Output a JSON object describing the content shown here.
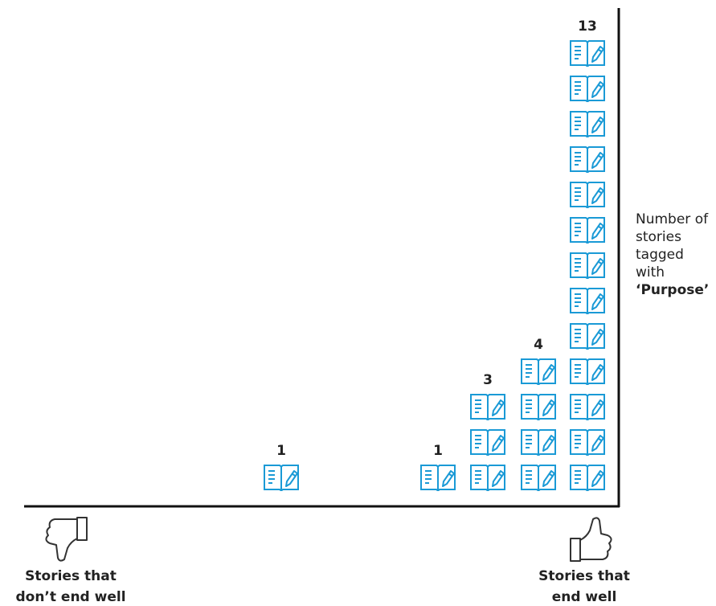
{
  "chart_data": {
    "type": "pictogram",
    "categories": [
      null,
      null,
      null,
      null,
      null
    ],
    "values": [
      1,
      1,
      3,
      4,
      13
    ],
    "color": "#1a9ad6",
    "x_label_left": [
      "Stories that",
      "don’t end well"
    ],
    "x_label_right": [
      "Stories that",
      "end well"
    ],
    "y_label": {
      "text": "Number of stories tagged with",
      "emphasis": "‘Purpose’"
    }
  }
}
